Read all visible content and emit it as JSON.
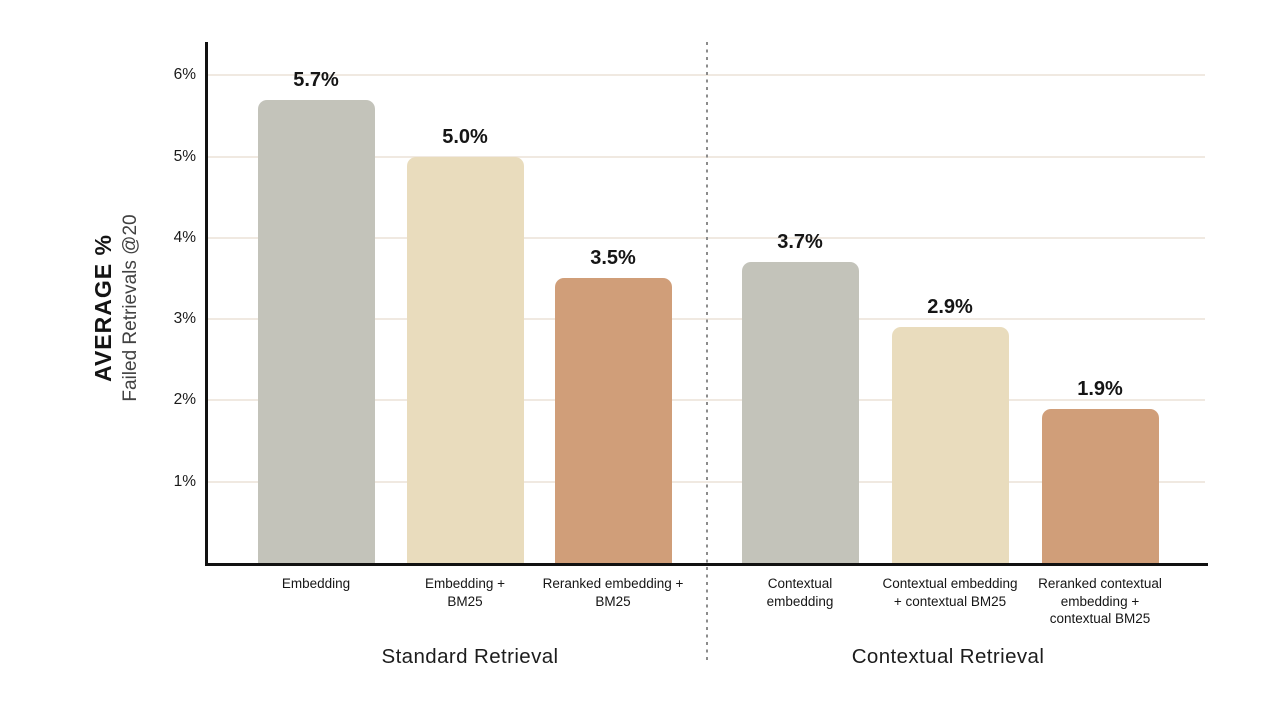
{
  "colors": {
    "background": "#ffffff",
    "axis": "#111111",
    "gridline": "#f0e9e1",
    "divider": "#8c8c8c",
    "text_primary": "#141414",
    "text_secondary": "#424242",
    "bar_gray": "#c3c3ba",
    "bar_beige": "#e9dcbd",
    "bar_terracotta": "#d09e79"
  },
  "chart_data": {
    "type": "bar",
    "title": "",
    "ylabel_primary": "AVERAGE %",
    "ylabel_secondary": "Failed Retrievals @20",
    "ylabel": "Average % Failed Retrievals @20",
    "y_ticks": [
      "1%",
      "2%",
      "3%",
      "4%",
      "5%",
      "6%"
    ],
    "ylim": [
      0,
      6.4
    ],
    "grid": true,
    "legend": "none",
    "groups": [
      {
        "label": "Standard Retrieval",
        "bars": [
          {
            "category": "Embedding",
            "label_lines": [
              "Embedding"
            ],
            "value": 5.7,
            "value_label": "5.7%",
            "color": "#c3c3ba"
          },
          {
            "category": "Embedding + BM25",
            "label_lines": [
              "Embedding +",
              "BM25"
            ],
            "value": 5.0,
            "value_label": "5.0%",
            "color": "#e9dcbd"
          },
          {
            "category": "Reranked embedding + BM25",
            "label_lines": [
              "Reranked embedding +",
              "BM25"
            ],
            "value": 3.5,
            "value_label": "3.5%",
            "color": "#d09e79"
          }
        ]
      },
      {
        "label": "Contextual Retrieval",
        "bars": [
          {
            "category": "Contextual embedding",
            "label_lines": [
              "Contextual",
              "embedding"
            ],
            "value": 3.7,
            "value_label": "3.7%",
            "color": "#c3c3ba"
          },
          {
            "category": "Contextual embedding + contextual BM25",
            "label_lines": [
              "Contextual embedding",
              "+ contextual BM25"
            ],
            "value": 2.9,
            "value_label": "2.9%",
            "color": "#e9dcbd"
          },
          {
            "category": "Reranked contextual embedding + contextual BM25",
            "label_lines": [
              "Reranked contextual",
              "embedding +",
              "contextual BM25"
            ],
            "value": 1.9,
            "value_label": "1.9%",
            "color": "#d09e79"
          }
        ]
      }
    ]
  }
}
